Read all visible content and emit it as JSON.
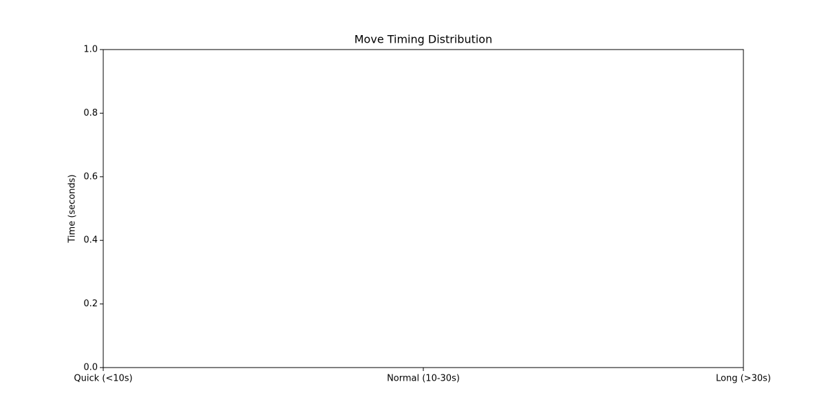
{
  "chart_data": {
    "type": "bar",
    "title": "Move Timing Distribution",
    "y_label": "Time (seconds)",
    "categories": [
      "Quick (<10s)",
      "Normal (10-30s)",
      "Long (>30s)"
    ],
    "ylim": [
      0,
      1
    ],
    "yticks": [
      {
        "value": 0,
        "label": "0.0"
      },
      0.2,
      0.4,
      0.6,
      0.8,
      {
        "value": 1,
        "label": "1.0"
      }
    ],
    "grid": false
  }
}
